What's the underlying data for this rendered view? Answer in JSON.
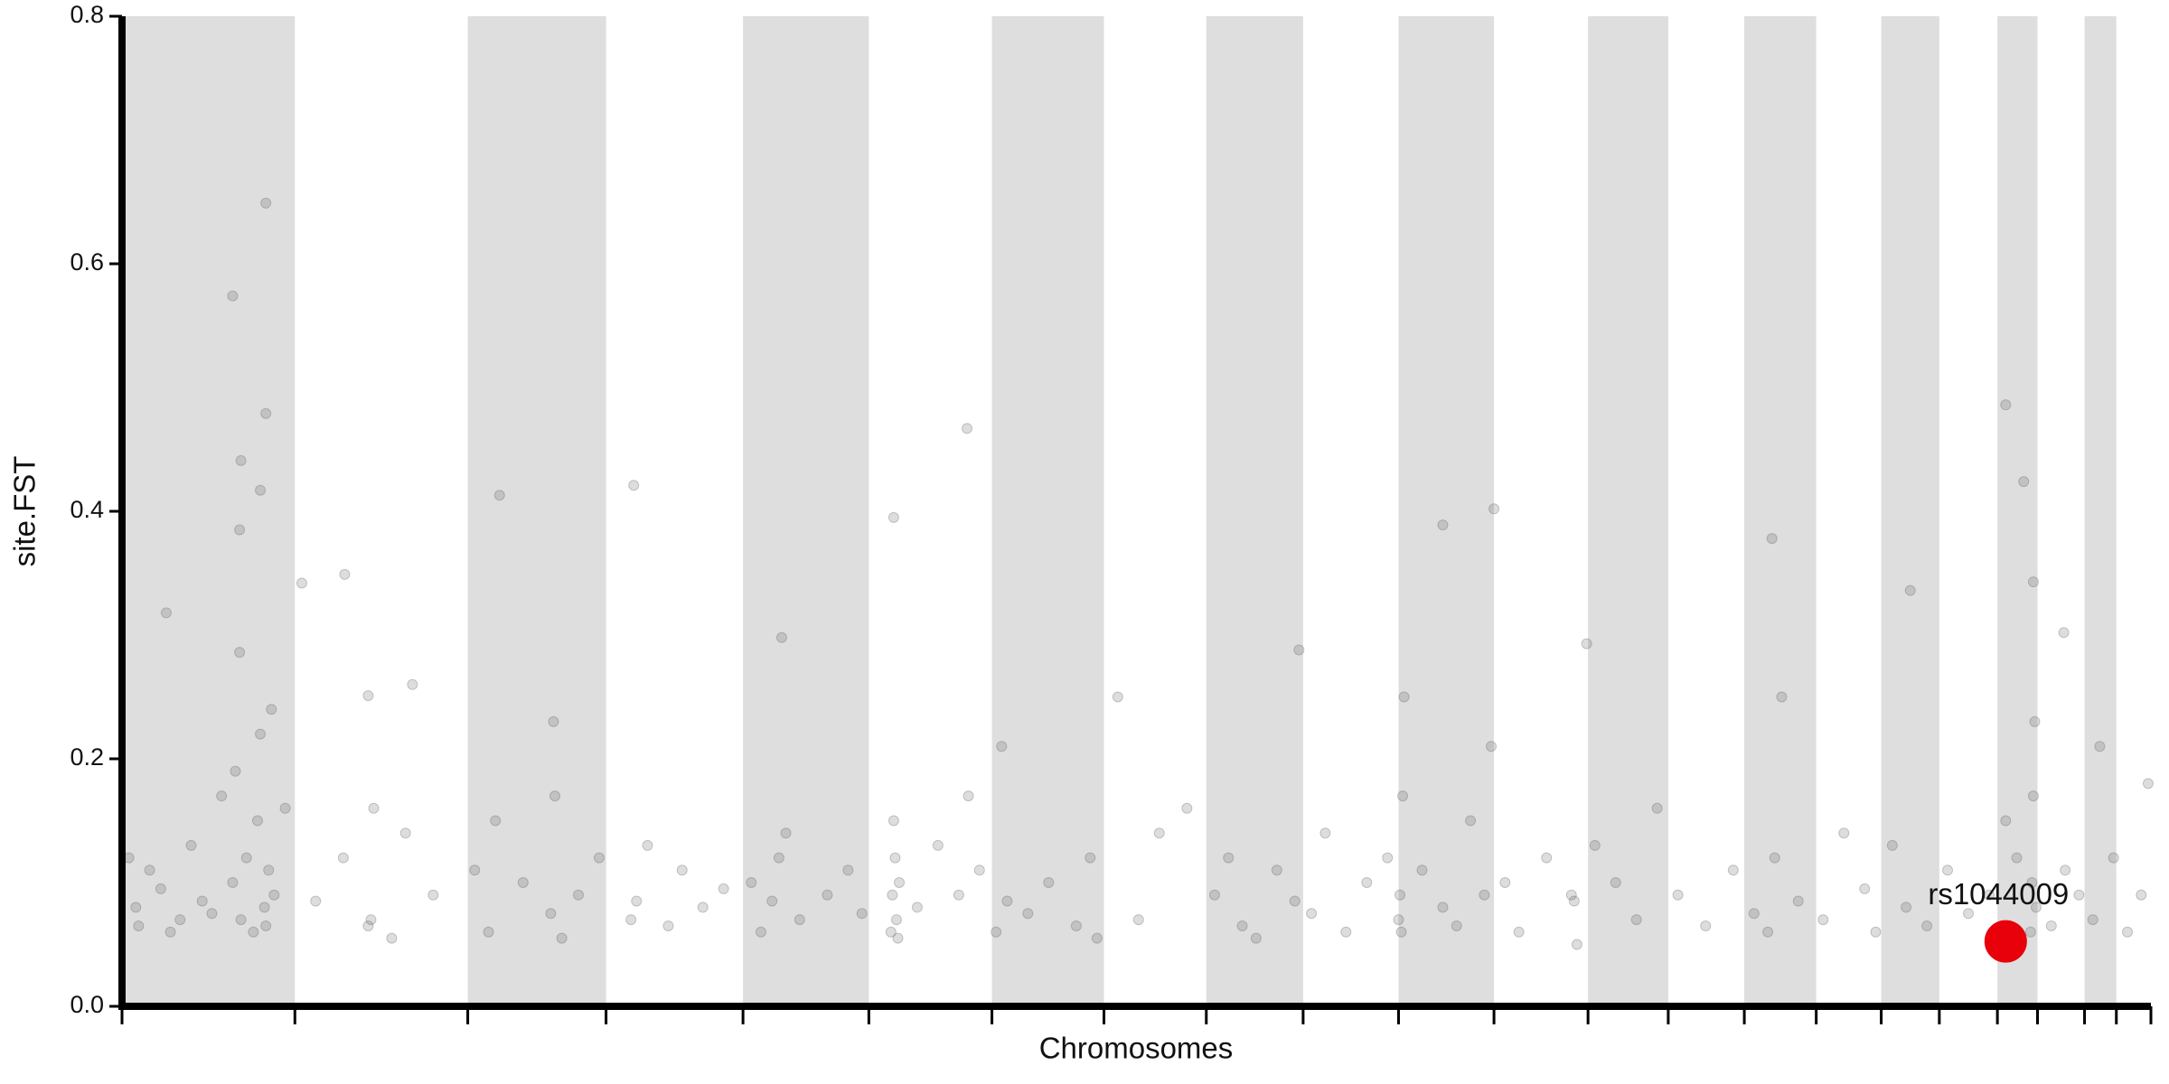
{
  "chart_data": {
    "type": "scatter",
    "x_label": "Chromosomes",
    "y_label": "site.FST",
    "xlim": [
      0,
      1467
    ],
    "ylim": [
      0,
      0.8
    ],
    "xticks": [
      0,
      125,
      250,
      350,
      449,
      540,
      629,
      710,
      784,
      854,
      923,
      992,
      1060,
      1118,
      1173,
      1225,
      1272,
      1314,
      1356,
      1385,
      1419,
      1442,
      1467
    ],
    "yticks": [
      {
        "value": 0,
        "label": "0.0"
      },
      0.2,
      0.4,
      0.6,
      0.8
    ],
    "band_color": "#dedede",
    "series": [
      {
        "color": "#555555",
        "x": [
          80,
          104,
          104,
          86,
          100,
          85,
          85,
          32,
          130,
          161,
          273,
          370,
          611,
          558,
          955,
          992,
          1362,
          1375,
          1193,
          1293,
          1404,
          178,
          851,
          1059,
          477,
          1382,
          5,
          10,
          12,
          20,
          28,
          35,
          42,
          50,
          58,
          65,
          72,
          80,
          82,
          86,
          90,
          95,
          98,
          100,
          103,
          104,
          106,
          108,
          110,
          118,
          140,
          160,
          178,
          180,
          182,
          195,
          205,
          210,
          225,
          255,
          265,
          270,
          290,
          310,
          312,
          313,
          318,
          330,
          345,
          368,
          372,
          380,
          395,
          405,
          420,
          435,
          455,
          462,
          470,
          475,
          480,
          490,
          510,
          525,
          535,
          556,
          557,
          558,
          559,
          560,
          561,
          562,
          575,
          590,
          605,
          612,
          620,
          632,
          636,
          640,
          655,
          670,
          690,
          700,
          705,
          720,
          735,
          750,
          770,
          790,
          800,
          810,
          820,
          835,
          848,
          860,
          870,
          885,
          900,
          915,
          923,
          924,
          925,
          926,
          927,
          940,
          955,
          965,
          975,
          985,
          990,
          1000,
          1010,
          1030,
          1048,
          1050,
          1052,
          1065,
          1080,
          1095,
          1110,
          1125,
          1145,
          1165,
          1180,
          1190,
          1195,
          1200,
          1212,
          1230,
          1245,
          1260,
          1268,
          1280,
          1290,
          1305,
          1320,
          1335,
          1350,
          1362,
          1370,
          1380,
          1381,
          1382,
          1383,
          1384,
          1395,
          1405,
          1415,
          1425,
          1430,
          1440,
          1450,
          1460,
          1465
        ],
        "values": [
          0.574,
          0.649,
          0.479,
          0.441,
          0.417,
          0.385,
          0.286,
          0.318,
          0.342,
          0.349,
          0.413,
          0.421,
          0.467,
          0.395,
          0.389,
          0.402,
          0.486,
          0.424,
          0.378,
          0.336,
          0.302,
          0.251,
          0.288,
          0.293,
          0.298,
          0.343,
          0.12,
          0.08,
          0.065,
          0.11,
          0.095,
          0.06,
          0.07,
          0.13,
          0.085,
          0.075,
          0.17,
          0.1,
          0.19,
          0.07,
          0.12,
          0.06,
          0.15,
          0.22,
          0.08,
          0.065,
          0.11,
          0.24,
          0.09,
          0.16,
          0.085,
          0.12,
          0.065,
          0.07,
          0.16,
          0.055,
          0.14,
          0.26,
          0.09,
          0.11,
          0.06,
          0.15,
          0.1,
          0.075,
          0.23,
          0.17,
          0.055,
          0.09,
          0.12,
          0.07,
          0.085,
          0.13,
          0.065,
          0.11,
          0.08,
          0.095,
          0.1,
          0.06,
          0.085,
          0.12,
          0.14,
          0.07,
          0.09,
          0.11,
          0.075,
          0.06,
          0.09,
          0.15,
          0.12,
          0.07,
          0.055,
          0.1,
          0.08,
          0.13,
          0.09,
          0.17,
          0.11,
          0.06,
          0.21,
          0.085,
          0.075,
          0.1,
          0.065,
          0.12,
          0.055,
          0.25,
          0.07,
          0.14,
          0.16,
          0.09,
          0.12,
          0.065,
          0.055,
          0.11,
          0.085,
          0.075,
          0.14,
          0.06,
          0.1,
          0.12,
          0.07,
          0.09,
          0.06,
          0.17,
          0.25,
          0.11,
          0.08,
          0.065,
          0.15,
          0.09,
          0.21,
          0.1,
          0.06,
          0.12,
          0.09,
          0.085,
          0.05,
          0.13,
          0.1,
          0.07,
          0.16,
          0.09,
          0.065,
          0.11,
          0.075,
          0.06,
          0.12,
          0.25,
          0.085,
          0.07,
          0.14,
          0.095,
          0.06,
          0.13,
          0.08,
          0.065,
          0.11,
          0.075,
          0.09,
          0.15,
          0.12,
          0.06,
          0.1,
          0.17,
          0.23,
          0.08,
          0.065,
          0.11,
          0.09,
          0.07,
          0.21,
          0.12,
          0.06,
          0.09,
          0.18
        ]
      },
      {
        "color": "#e8000b",
        "x": [
          1362
        ],
        "values": [
          0.0525
        ],
        "value_labels": [
          "rs1044009"
        ]
      }
    ]
  }
}
